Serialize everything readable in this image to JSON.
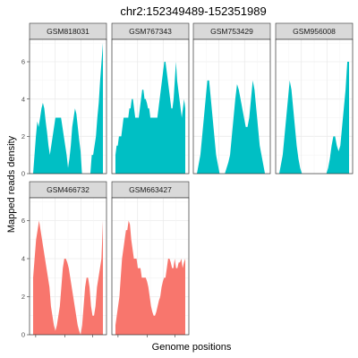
{
  "chart_data": {
    "type": "area",
    "title": "chr2:152349489-152351989",
    "xlabel": "Genome positions",
    "ylabel": "Mapped reads density",
    "ylim": [
      0,
      7.2
    ],
    "y_ticks": [
      0,
      2,
      4,
      6
    ],
    "x_ticks_shown_without_labels": true,
    "grid": true,
    "layout": "facet_wrap, 4 columns",
    "colors": {
      "group1": "#00BFC4",
      "group2": "#F8766D",
      "strip": "#d9d9d9"
    },
    "panels": [
      {
        "name": "GSM818031",
        "group": "group1",
        "values": [
          0,
          1,
          2,
          2.8,
          2.5,
          3,
          3.5,
          3.8,
          3.5,
          2.8,
          2.2,
          1.5,
          1,
          1.5,
          2,
          2.5,
          3,
          3,
          3,
          3,
          3,
          2.5,
          2,
          1.5,
          1,
          0.3,
          0.8,
          1.5,
          2.5,
          3,
          3.5,
          3.2,
          2.5,
          1.8,
          1.2,
          0,
          0,
          0,
          0,
          0,
          0,
          0,
          1,
          1,
          1.5,
          2,
          3,
          3.8,
          5,
          6,
          7
        ]
      },
      {
        "name": "GSM767343",
        "group": "group1",
        "values": [
          1,
          1.5,
          1.5,
          2,
          2,
          2,
          2.5,
          3,
          3,
          3,
          3,
          3,
          3.5,
          3.5,
          4,
          4,
          3.5,
          3,
          3,
          3,
          3,
          3.5,
          4,
          4.5,
          4.5,
          4,
          4,
          3.8,
          3.5,
          3.5,
          3,
          3,
          3,
          3,
          3,
          3,
          3,
          3.5,
          4,
          4.5,
          5,
          5.5,
          6,
          6,
          5.5,
          5,
          4.5,
          4,
          3.5,
          3.5,
          4,
          5,
          6,
          5,
          4.5,
          4,
          3.5,
          3,
          3.5,
          4,
          3.5
        ]
      },
      {
        "name": "GSM753429",
        "group": "group1",
        "values": [
          0,
          0.5,
          1,
          2,
          3,
          4,
          5,
          5,
          4,
          3,
          2,
          1,
          0.5,
          0,
          0,
          0,
          0,
          0.3,
          0.6,
          1,
          2,
          3,
          4,
          4.8,
          4.5,
          4,
          3.5,
          3,
          2.5,
          2.5,
          3,
          4,
          5,
          4.5,
          3.5,
          2.5,
          1.5,
          1,
          0.5,
          0,
          0
        ]
      },
      {
        "name": "GSM956008",
        "group": "group1",
        "values": [
          0,
          0.5,
          1,
          2,
          3,
          4,
          5,
          4.5,
          3.5,
          2.5,
          1.5,
          0.8,
          0.3,
          0,
          0,
          0,
          0,
          0,
          0,
          0,
          0,
          0,
          0,
          0,
          0,
          0,
          0,
          0,
          0.3,
          0.8,
          1.5,
          2,
          2,
          1.5,
          1.2,
          1.5,
          2.5,
          3.5,
          4.5,
          6,
          6
        ]
      },
      {
        "name": "GSM466732",
        "group": "group2",
        "values": [
          3,
          4,
          5,
          5.5,
          6,
          5.5,
          5,
          4.5,
          4,
          3.5,
          3,
          2.5,
          1.5,
          1,
          0.5,
          0.2,
          0.5,
          1,
          1.5,
          2.5,
          3.5,
          4,
          4,
          3.8,
          3.5,
          3,
          2.5,
          2,
          1.5,
          1,
          0.5,
          0.2,
          0,
          0.5,
          1.5,
          2.5,
          3,
          3,
          2.5,
          1.5,
          1,
          1,
          1.5,
          2.5,
          3,
          3.5,
          4,
          6
        ]
      },
      {
        "name": "GSM663427",
        "group": "group2",
        "values": [
          0.5,
          1,
          1.5,
          2,
          3,
          4,
          4.5,
          5,
          5.5,
          5.5,
          6,
          5.8,
          5,
          4.5,
          4,
          4,
          4,
          3.5,
          3.5,
          3.5,
          3,
          3,
          3,
          3,
          2.8,
          2.5,
          2,
          1.5,
          1.2,
          1,
          1,
          1.2,
          1.5,
          1.8,
          2,
          2.5,
          2.8,
          3,
          3,
          3.5,
          4,
          4,
          3.8,
          3.5,
          3.5,
          4,
          3.5,
          3.5,
          3.8,
          3.8,
          4,
          3.5,
          3.8,
          4
        ]
      }
    ]
  }
}
